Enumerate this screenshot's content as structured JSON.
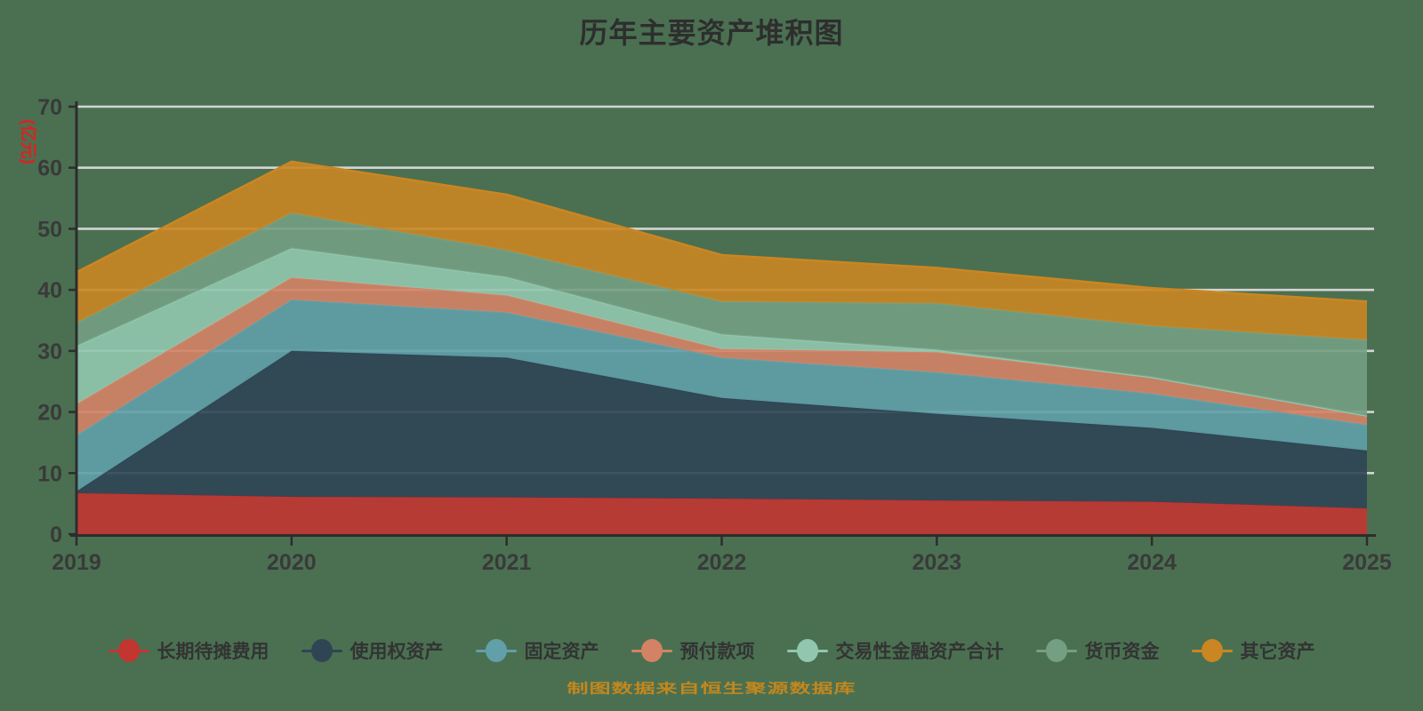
{
  "title": "历年主要资产堆积图",
  "y_axis": {
    "unit_label": "(亿元)",
    "tick_labels": [
      "0",
      "10",
      "20",
      "30",
      "40",
      "50",
      "60",
      "70"
    ]
  },
  "footer": "制图数据来自恒生聚源数据库",
  "accent_colors": {
    "background": "#4a7051",
    "title_text": "#2e2e2e",
    "axis_line": "#2d2d2d",
    "axis_text": "#3a3a3a",
    "gridline": "#d4d4d4",
    "unit_label_red": "#e01f1f",
    "footer_gold": "#c5871d"
  },
  "chart_data": {
    "type": "area",
    "stacked": true,
    "title": "历年主要资产堆积图",
    "xlabel": "",
    "ylabel": "(亿元)",
    "categories": [
      "2019",
      "2020",
      "2021",
      "2022",
      "2023",
      "2024",
      "2025"
    ],
    "ylim": [
      0,
      70
    ],
    "y_ticks": [
      0,
      10,
      20,
      30,
      40,
      50,
      60,
      70
    ],
    "grid": true,
    "legend_position": "bottom",
    "series": [
      {
        "name": "长期待摊费用",
        "color": "#c23531",
        "values": [
          6.7,
          6.1,
          6.0,
          5.8,
          5.5,
          5.3,
          4.2
        ]
      },
      {
        "name": "使用权资产",
        "color": "#2f4554",
        "values": [
          0.3,
          23.9,
          22.9,
          16.5,
          14.2,
          12.1,
          9.5
        ]
      },
      {
        "name": "固定资产",
        "color": "#61a0a8",
        "values": [
          9.2,
          8.4,
          7.4,
          6.6,
          6.8,
          5.6,
          4.2
        ]
      },
      {
        "name": "预付款项",
        "color": "#d48265",
        "values": [
          5.1,
          3.6,
          2.8,
          1.4,
          3.3,
          2.7,
          1.5
        ]
      },
      {
        "name": "交易性金融资产合计",
        "color": "#91c7ae",
        "values": [
          9.5,
          4.8,
          3.0,
          2.4,
          0.4,
          0.0,
          0.0
        ]
      },
      {
        "name": "货币资金",
        "color": "#749f83",
        "values": [
          3.8,
          5.8,
          4.4,
          5.4,
          7.6,
          8.4,
          12.4
        ]
      },
      {
        "name": "其它资产",
        "color": "#ca8622",
        "values": [
          8.3,
          8.4,
          9.1,
          7.6,
          5.8,
          6.2,
          6.3
        ]
      }
    ],
    "totals": [
      42.9,
      61.0,
      55.6,
      45.7,
      43.6,
      40.3,
      38.1
    ]
  }
}
